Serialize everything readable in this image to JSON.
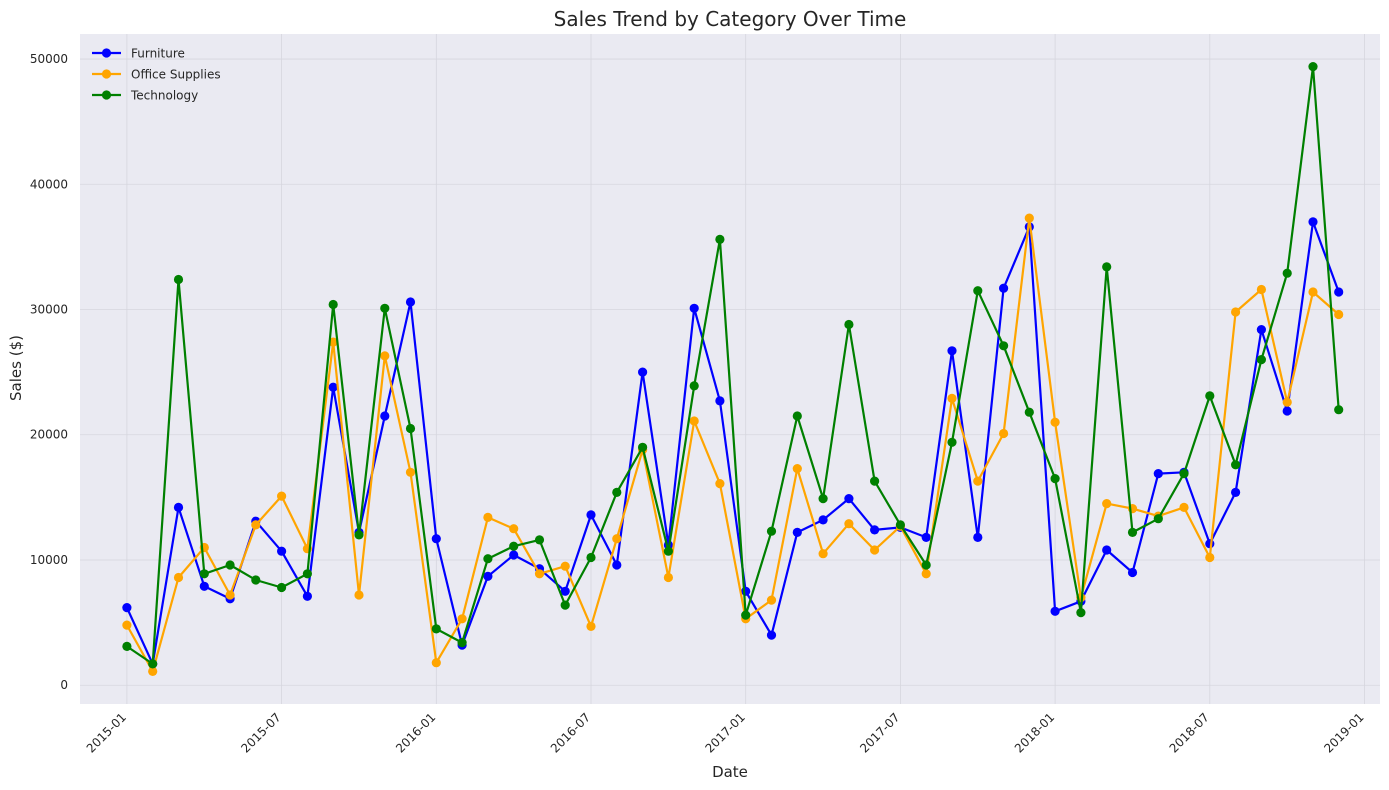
{
  "chart_data": {
    "type": "line",
    "title": "Sales Trend by Category Over Time",
    "xlabel": "Date",
    "ylabel": "Sales ($)",
    "ylim": [
      -1500,
      52000
    ],
    "yticks": [
      0,
      10000,
      20000,
      30000,
      40000,
      50000
    ],
    "xticks": [
      "2015-01",
      "2015-07",
      "2016-01",
      "2016-07",
      "2017-01",
      "2017-07",
      "2018-01",
      "2018-07",
      "2019-01"
    ],
    "grid": true,
    "legend": "top-left",
    "x": [
      "2015-01",
      "2015-02",
      "2015-03",
      "2015-04",
      "2015-05",
      "2015-06",
      "2015-07",
      "2015-08",
      "2015-09",
      "2015-10",
      "2015-11",
      "2015-12",
      "2016-01",
      "2016-02",
      "2016-03",
      "2016-04",
      "2016-05",
      "2016-06",
      "2016-07",
      "2016-08",
      "2016-09",
      "2016-10",
      "2016-11",
      "2016-12",
      "2017-01",
      "2017-02",
      "2017-03",
      "2017-04",
      "2017-05",
      "2017-06",
      "2017-07",
      "2017-08",
      "2017-09",
      "2017-10",
      "2017-11",
      "2017-12",
      "2018-01",
      "2018-02",
      "2018-03",
      "2018-04",
      "2018-05",
      "2018-06",
      "2018-07",
      "2018-08",
      "2018-09",
      "2018-10",
      "2018-11",
      "2018-12"
    ],
    "series": [
      {
        "name": "Furniture",
        "color": "#0000ff",
        "values": [
          6200,
          1700,
          14200,
          7900,
          6900,
          13100,
          10700,
          7100,
          23800,
          12200,
          21500,
          30600,
          11700,
          3200,
          8700,
          10400,
          9300,
          7500,
          13600,
          9600,
          25000,
          11200,
          30100,
          22700,
          7500,
          4000,
          12200,
          13200,
          14900,
          12400,
          12600,
          11800,
          26700,
          11800,
          31700,
          36600,
          5900,
          6700,
          10800,
          9000,
          16900,
          17000,
          11300,
          15400,
          28400,
          21900,
          37000,
          31400
        ]
      },
      {
        "name": "Office Supplies",
        "color": "#ffa500",
        "values": [
          4800,
          1100,
          8600,
          11000,
          7200,
          12800,
          15100,
          10900,
          27400,
          7200,
          26300,
          17000,
          1800,
          5300,
          13400,
          12500,
          8900,
          9500,
          4700,
          11700,
          18800,
          8600,
          21100,
          16100,
          5300,
          6800,
          17300,
          10500,
          12900,
          10800,
          12700,
          8900,
          22900,
          16300,
          20100,
          37300,
          21000,
          7000,
          14500,
          14100,
          13500,
          14200,
          10200,
          29800,
          31600,
          22600,
          31400,
          29600
        ]
      },
      {
        "name": "Technology",
        "color": "#008000",
        "values": [
          3100,
          1700,
          32400,
          8900,
          9600,
          8400,
          7800,
          8900,
          30400,
          12000,
          30100,
          20500,
          4500,
          3400,
          10100,
          11100,
          11600,
          6400,
          10200,
          15400,
          19000,
          10700,
          23900,
          35600,
          5600,
          12300,
          21500,
          14900,
          28800,
          16300,
          12800,
          9600,
          19400,
          31500,
          27100,
          21800,
          16500,
          5800,
          33400,
          12200,
          13300,
          16900,
          23100,
          17600,
          26000,
          32900,
          49400,
          22000
        ]
      }
    ]
  }
}
